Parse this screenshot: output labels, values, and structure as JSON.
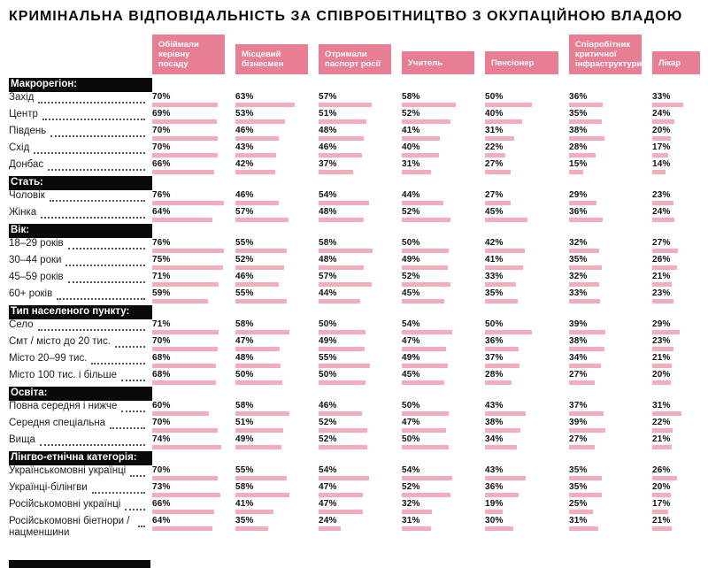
{
  "title": "КРИМІНАЛЬНА ВІДПОВІДАЛЬНІСТЬ ЗА СПІВРОБІТНИЦТВО З ОКУПАЦІЙНОЮ ВЛАДОЮ",
  "colors": {
    "column_header_pink": "#e87e93",
    "bar_pink": "#f4adbb",
    "section_header_black": "#0a0a0a"
  },
  "chart_data": {
    "type": "bar",
    "title": "КРИМІНАЛЬНА ВІДПОВІДАЛЬНІСТЬ ЗА СПІВРОБІТНИЦТВО З ОКУПАЦІЙНОЮ ВЛАДОЮ",
    "unit": "%",
    "value_range": [
      0,
      100
    ],
    "columns": [
      "Обіймали керівну посаду",
      "Місцевий бізнесмен",
      "Отримали паспорт росії",
      "Учитель",
      "Пенсіонер",
      "Співробітник критичної інфраструктури",
      "Лікар"
    ],
    "sections": [
      {
        "label": "Макрорегіон:",
        "rows": [
          {
            "label": "Захід",
            "values": [
              70,
              63,
              57,
              58,
              50,
              36,
              33
            ]
          },
          {
            "label": "Центр",
            "values": [
              69,
              53,
              51,
              52,
              40,
              35,
              24
            ]
          },
          {
            "label": "Південь",
            "values": [
              70,
              46,
              48,
              41,
              31,
              38,
              20
            ]
          },
          {
            "label": "Схід",
            "values": [
              70,
              43,
              46,
              40,
              22,
              28,
              17
            ]
          },
          {
            "label": "Донбас",
            "values": [
              66,
              42,
              37,
              31,
              27,
              15,
              14
            ]
          }
        ]
      },
      {
        "label": "Стать:",
        "rows": [
          {
            "label": "Чоловік",
            "values": [
              76,
              46,
              54,
              44,
              27,
              29,
              23
            ]
          },
          {
            "label": "Жінка",
            "values": [
              64,
              57,
              48,
              52,
              45,
              36,
              24
            ]
          }
        ]
      },
      {
        "label": "Вік:",
        "rows": [
          {
            "label": "18–29 років",
            "values": [
              76,
              55,
              58,
              50,
              42,
              32,
              27
            ]
          },
          {
            "label": "30–44 роки",
            "values": [
              75,
              52,
              48,
              49,
              41,
              35,
              26
            ]
          },
          {
            "label": "45–59 років",
            "values": [
              71,
              46,
              57,
              52,
              33,
              32,
              21
            ]
          },
          {
            "label": "60+ років",
            "values": [
              59,
              55,
              44,
              45,
              35,
              33,
              23
            ]
          }
        ]
      },
      {
        "label": "Тип населеного пункту:",
        "rows": [
          {
            "label": "Село",
            "values": [
              71,
              58,
              50,
              54,
              50,
              39,
              29
            ]
          },
          {
            "label": "Смт / місто до 20 тис.",
            "values": [
              70,
              47,
              49,
              47,
              36,
              38,
              23
            ]
          },
          {
            "label": "Місто 20–99 тис.",
            "values": [
              68,
              48,
              55,
              49,
              37,
              34,
              21
            ]
          },
          {
            "label": "Місто 100 тис. і більше",
            "values": [
              68,
              50,
              50,
              45,
              28,
              27,
              20
            ]
          }
        ]
      },
      {
        "label": "Освіта:",
        "rows": [
          {
            "label": "Повна середня і нижче",
            "values": [
              60,
              58,
              46,
              50,
              43,
              37,
              31
            ]
          },
          {
            "label": "Середня спеціальна",
            "values": [
              70,
              51,
              52,
              47,
              38,
              39,
              22
            ]
          },
          {
            "label": "Вища",
            "values": [
              74,
              49,
              52,
              50,
              34,
              27,
              21
            ]
          }
        ]
      },
      {
        "label": "Лінгво-етнічна категорія:",
        "rows": [
          {
            "label": "Українськомовні українці",
            "values": [
              70,
              55,
              54,
              54,
              43,
              35,
              26
            ]
          },
          {
            "label": "Українці-білінгви",
            "values": [
              73,
              58,
              47,
              52,
              36,
              35,
              20
            ]
          },
          {
            "label": "Російськомовні українці",
            "values": [
              66,
              41,
              47,
              32,
              19,
              25,
              17
            ]
          },
          {
            "label": "Російськомовні біетнори / нацменшини",
            "values": [
              64,
              35,
              24,
              31,
              30,
              31,
              21
            ]
          }
        ]
      }
    ]
  }
}
